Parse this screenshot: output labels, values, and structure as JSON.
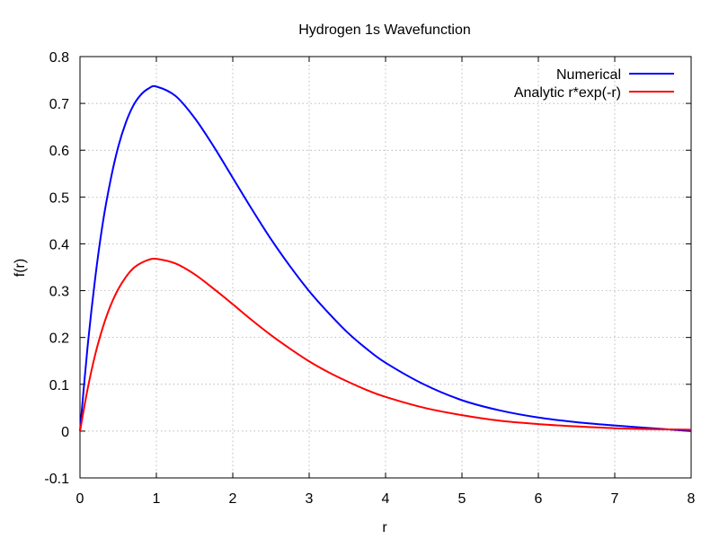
{
  "chart_data": {
    "type": "line",
    "title": "Hydrogen 1s Wavefunction",
    "xlabel": "r",
    "ylabel": "f(r)",
    "xlim": [
      0,
      8
    ],
    "ylim": [
      -0.1,
      0.8
    ],
    "xticks": [
      "0",
      "1",
      "2",
      "3",
      "4",
      "5",
      "6",
      "7",
      "8"
    ],
    "yticks": [
      "-0.1",
      "0",
      "0.1",
      "0.2",
      "0.3",
      "0.4",
      "0.5",
      "0.6",
      "0.7",
      "0.8"
    ],
    "grid": true,
    "legend_position": "top-right",
    "series": [
      {
        "name": "Numerical",
        "color": "#0000ff",
        "x": [
          0,
          0.1,
          0.2,
          0.3,
          0.4,
          0.5,
          0.6,
          0.7,
          0.8,
          0.9,
          1.0,
          1.25,
          1.5,
          1.75,
          2.0,
          2.25,
          2.5,
          2.75,
          3.0,
          3.25,
          3.5,
          3.75,
          4.0,
          4.5,
          5.0,
          5.5,
          6.0,
          6.5,
          7.0,
          7.5,
          8.0
        ],
        "y": [
          0,
          0.181,
          0.328,
          0.446,
          0.536,
          0.607,
          0.659,
          0.696,
          0.719,
          0.732,
          0.736,
          0.716,
          0.669,
          0.608,
          0.541,
          0.474,
          0.41,
          0.352,
          0.299,
          0.253,
          0.211,
          0.176,
          0.146,
          0.1,
          0.066,
          0.044,
          0.029,
          0.019,
          0.012,
          0.006,
          0.0
        ]
      },
      {
        "name": "Analytic r*exp(-r)",
        "color": "#ff0000",
        "x": [
          0,
          0.1,
          0.2,
          0.3,
          0.4,
          0.5,
          0.6,
          0.7,
          0.8,
          0.9,
          1.0,
          1.25,
          1.5,
          1.75,
          2.0,
          2.25,
          2.5,
          2.75,
          3.0,
          3.25,
          3.5,
          3.75,
          4.0,
          4.5,
          5.0,
          5.5,
          6.0,
          6.5,
          7.0,
          7.5,
          8.0
        ],
        "y": [
          0,
          0.09,
          0.164,
          0.222,
          0.268,
          0.303,
          0.329,
          0.348,
          0.359,
          0.366,
          0.368,
          0.358,
          0.335,
          0.304,
          0.271,
          0.237,
          0.205,
          0.176,
          0.149,
          0.126,
          0.106,
          0.088,
          0.073,
          0.05,
          0.034,
          0.022,
          0.015,
          0.01,
          0.006,
          0.004,
          0.003
        ]
      }
    ]
  }
}
